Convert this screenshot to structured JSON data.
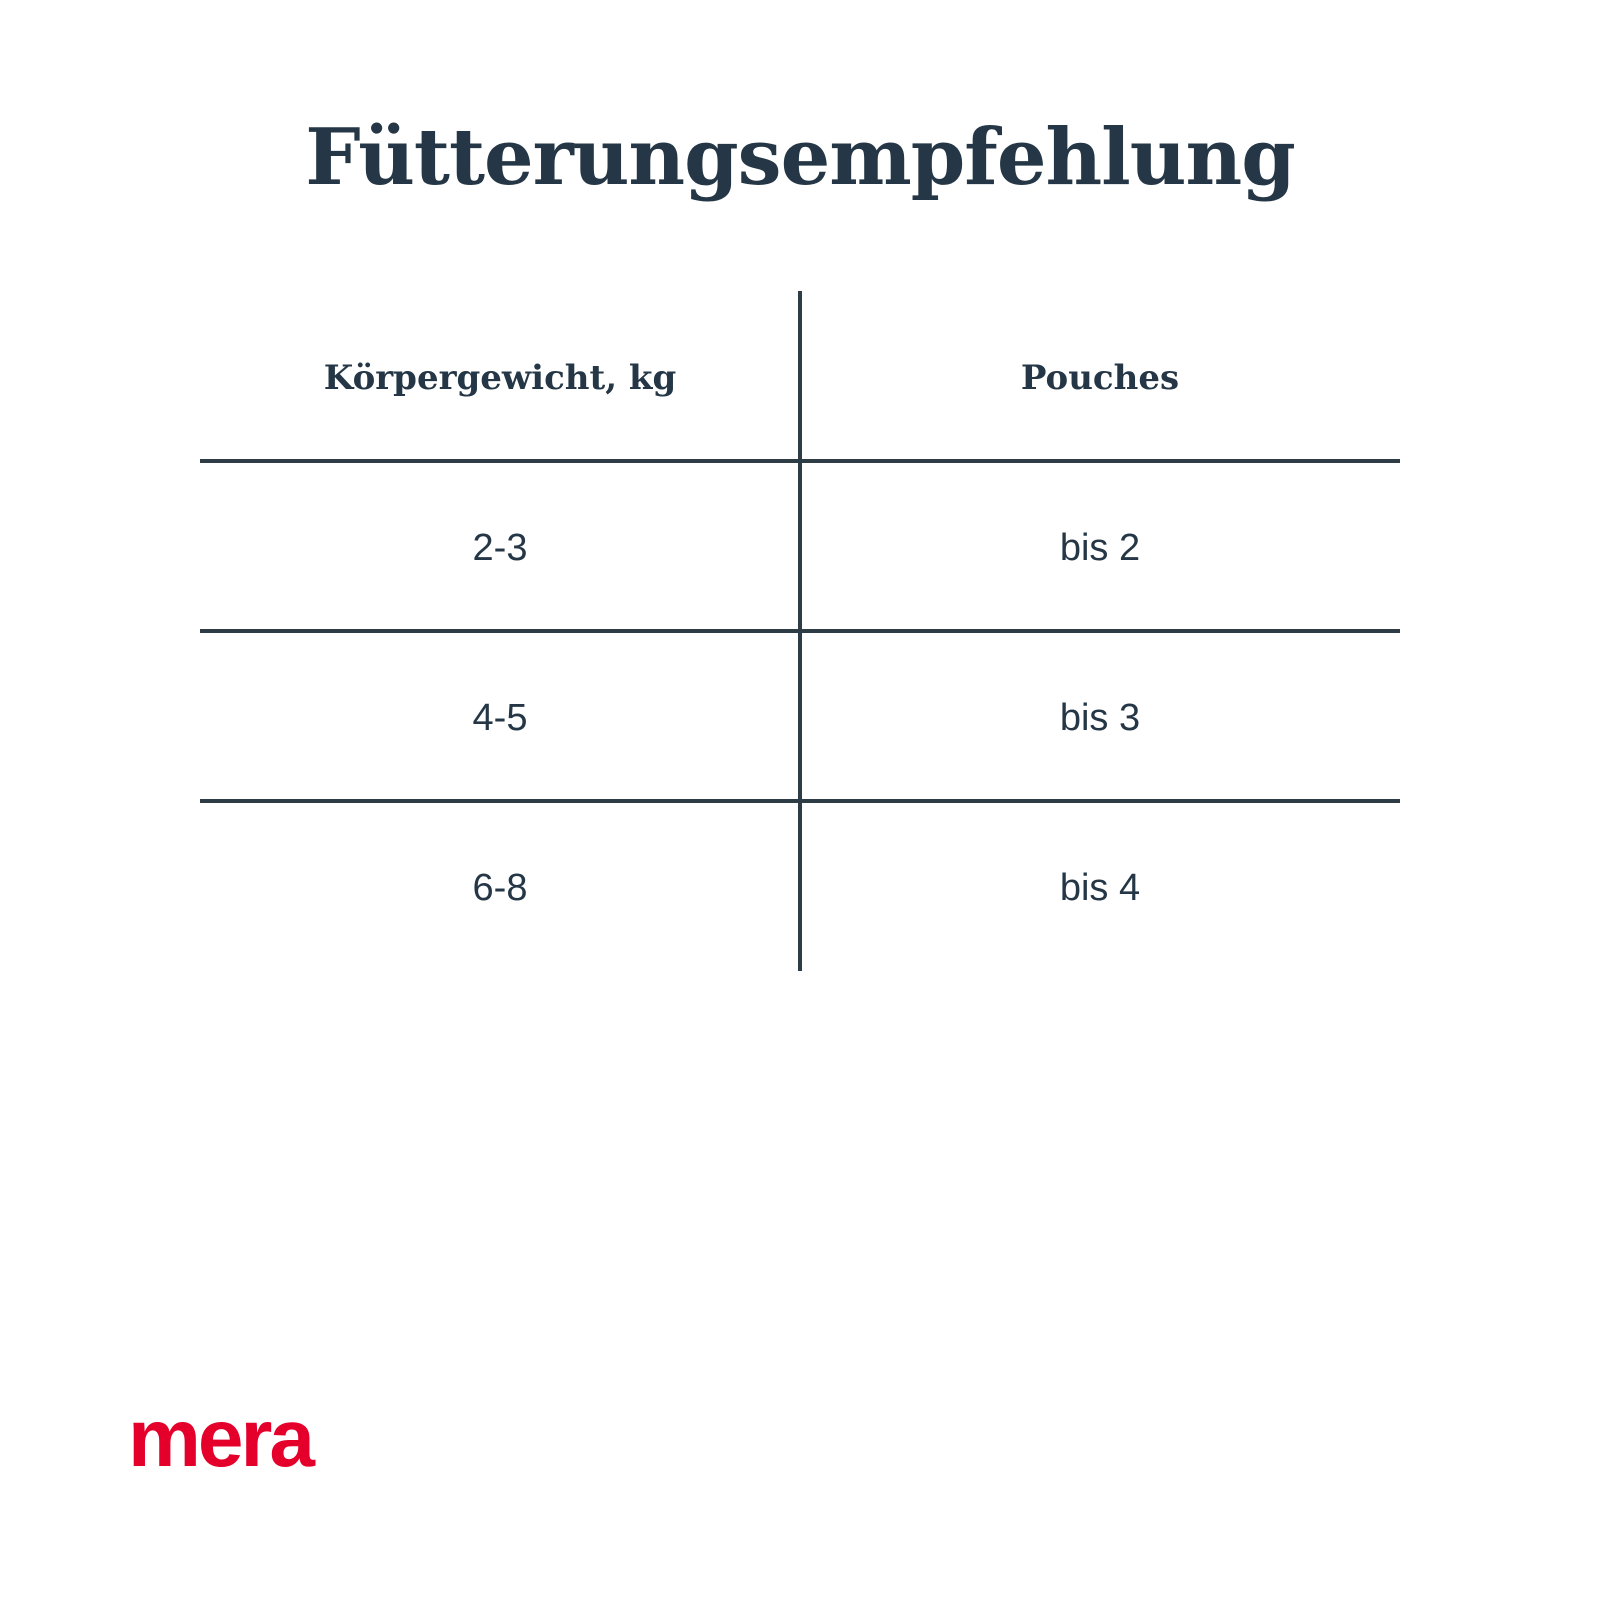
{
  "title": "Fütterungsempfehlung",
  "table": {
    "headers": [
      "Körpergewicht, kg",
      "Pouches"
    ],
    "rows": [
      [
        "2-3",
        "bis 2"
      ],
      [
        "4-5",
        "bis 3"
      ],
      [
        "6-8",
        "bis 4"
      ]
    ]
  },
  "logo": {
    "text": "mera",
    "color": "#e4002b"
  },
  "colors": {
    "text": "#253746",
    "lines": "#2e3d45"
  }
}
